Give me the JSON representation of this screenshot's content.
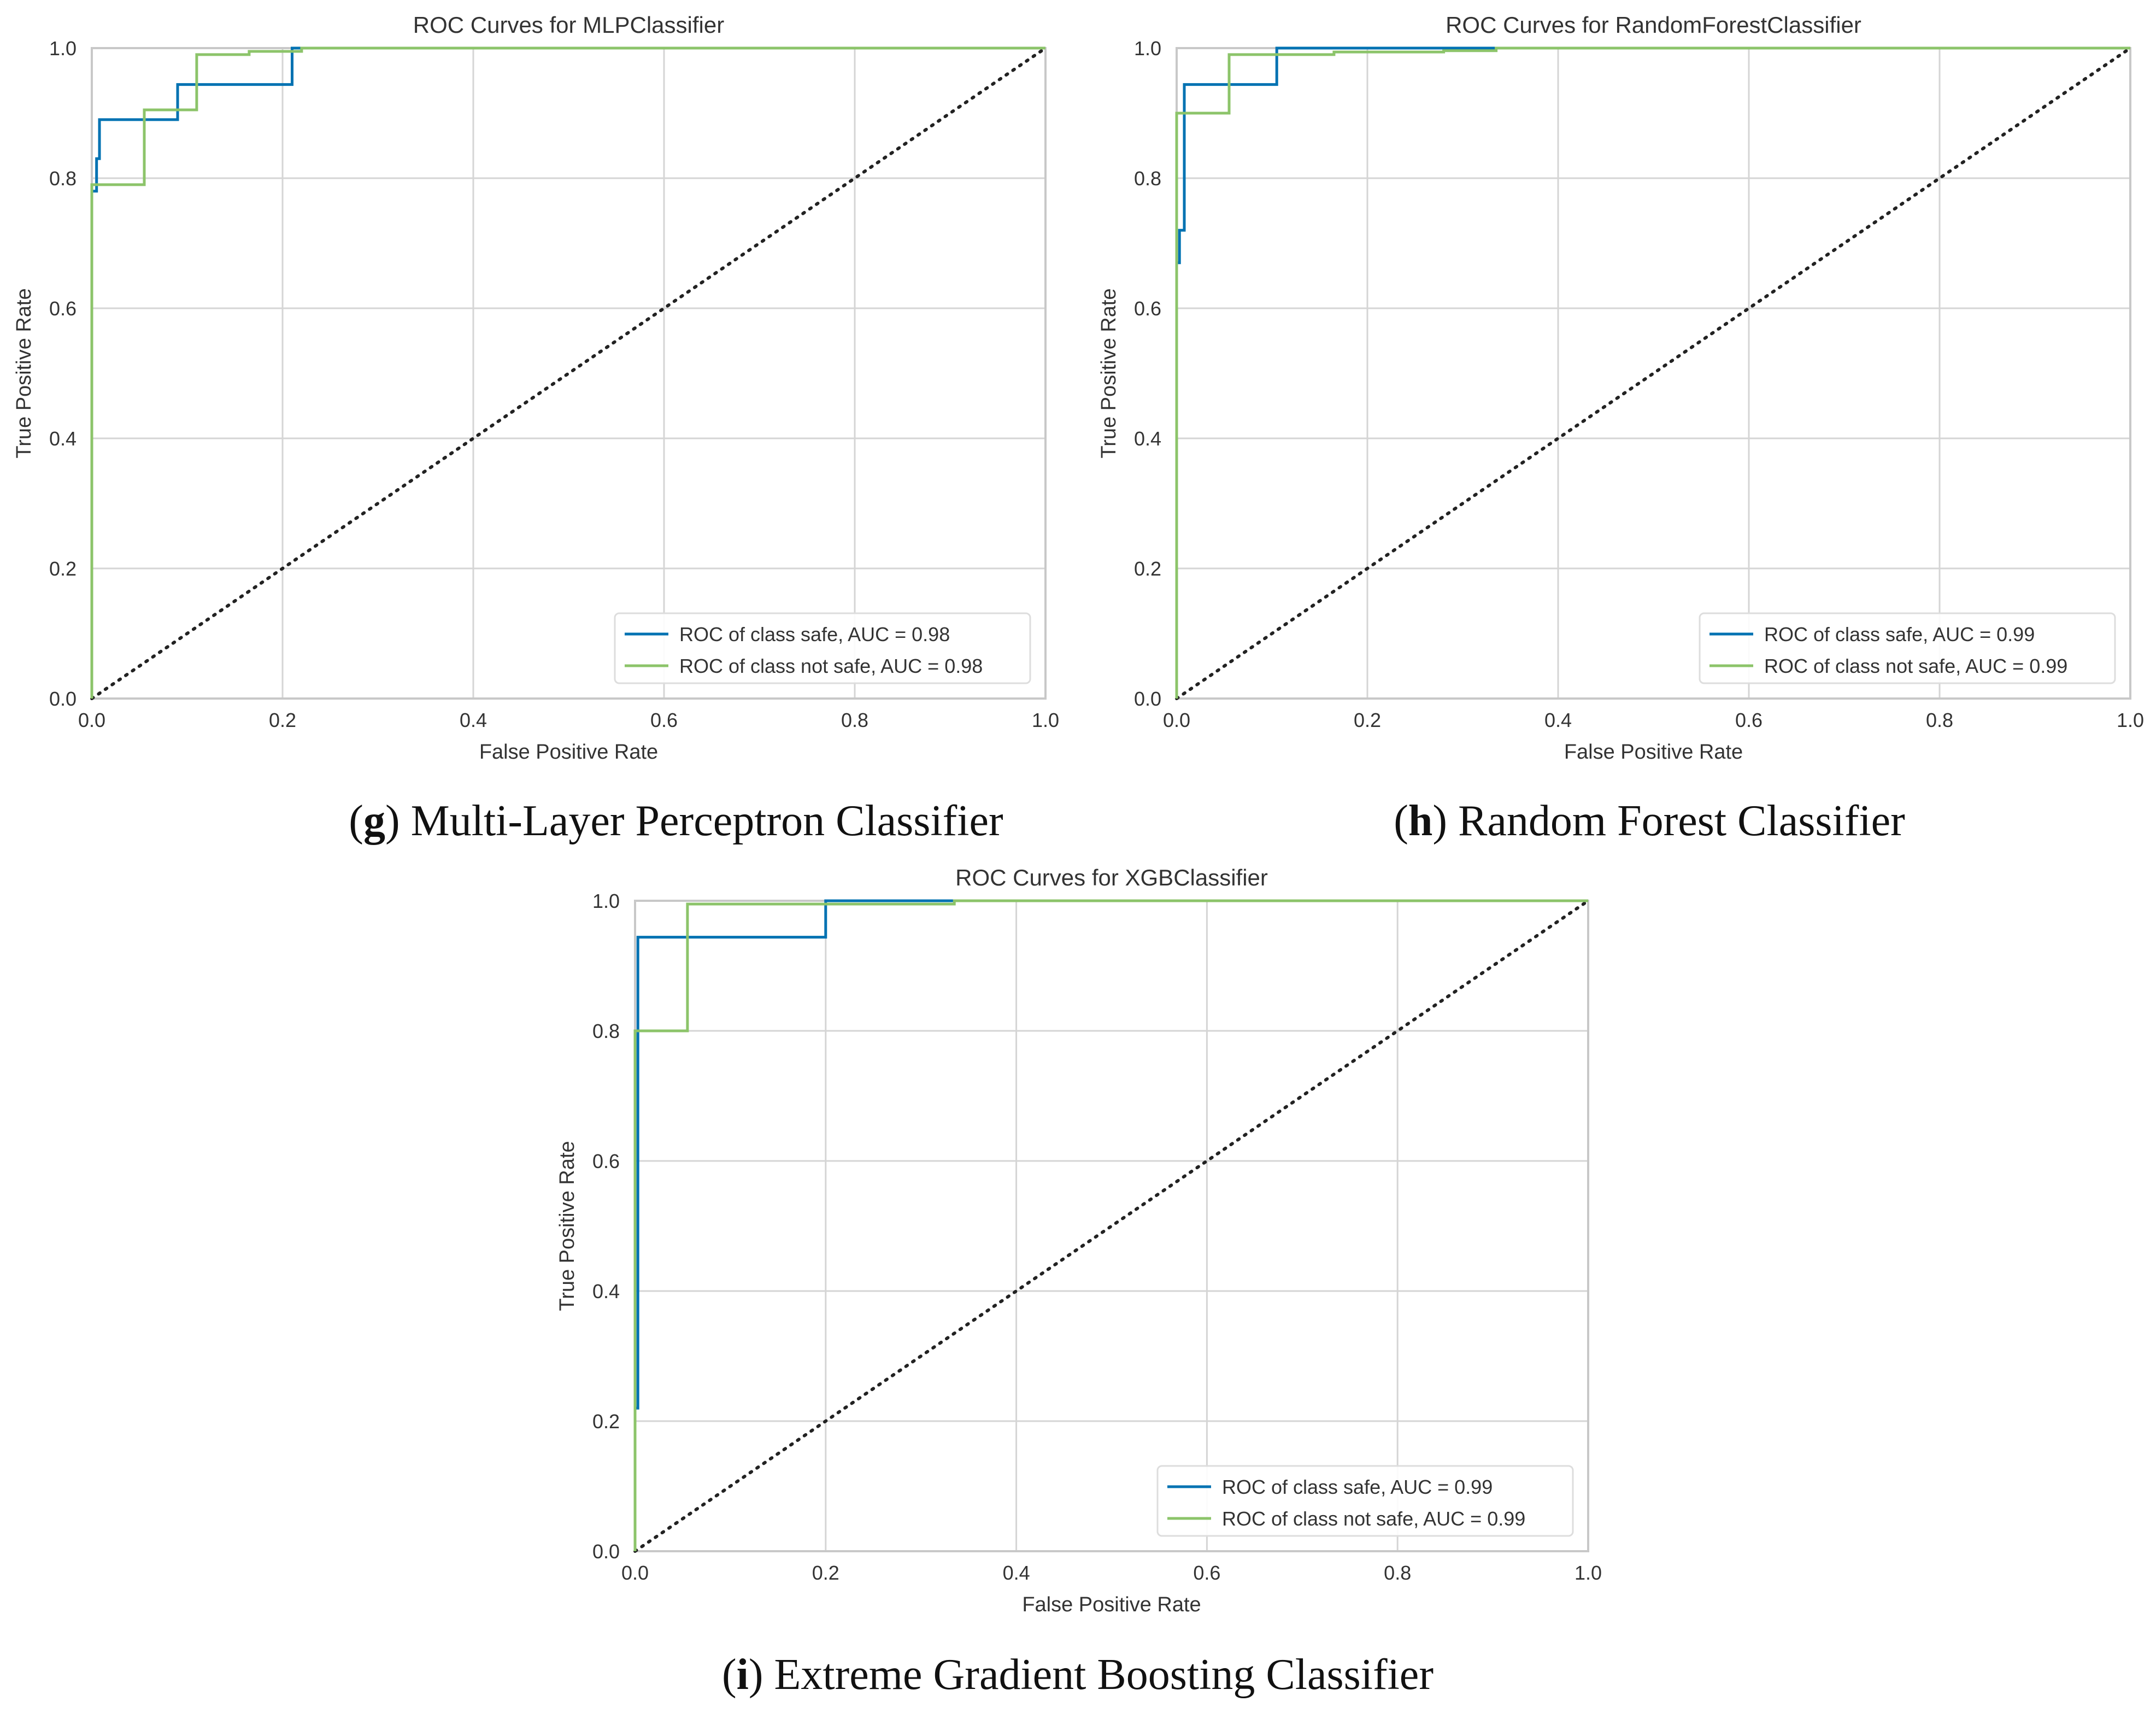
{
  "chart_data": [
    {
      "type": "line",
      "title": "ROC Curves for MLPClassifier",
      "xlabel": "False Positive Rate",
      "ylabel": "True Positive Rate",
      "xlim": [
        0,
        1
      ],
      "ylim": [
        0,
        1
      ],
      "xticks": [
        "0.0",
        "0.2",
        "0.4",
        "0.6",
        "0.8",
        "1.0"
      ],
      "yticks": [
        "0.0",
        "0.2",
        "0.4",
        "0.6",
        "0.8",
        "1.0"
      ],
      "grid": true,
      "legend_position": "lower-right",
      "colors": [
        "#0072B2",
        "#8CC46A"
      ],
      "series": [
        {
          "name": "ROC of class safe, AUC = 0.98",
          "x": [
            0,
            0,
            0.005,
            0.005,
            0.008,
            0.008,
            0.09,
            0.09,
            0.21,
            0.21,
            1
          ],
          "y": [
            0,
            0.78,
            0.78,
            0.83,
            0.83,
            0.89,
            0.89,
            0.944,
            0.944,
            1,
            1
          ]
        },
        {
          "name": "ROC of class not safe, AUC = 0.98",
          "x": [
            0,
            0,
            0.055,
            0.055,
            0.11,
            0.11,
            0.165,
            0.165,
            0.22,
            0.22,
            1
          ],
          "y": [
            0,
            0.79,
            0.79,
            0.905,
            0.905,
            0.99,
            0.99,
            0.995,
            0.995,
            1,
            1
          ]
        }
      ],
      "caption_letter": "g",
      "caption_text": "Multi-Layer Perceptron Classifier"
    },
    {
      "type": "line",
      "title": "ROC Curves for RandomForestClassifier",
      "xlabel": "False Positive Rate",
      "ylabel": "True Positive Rate",
      "xlim": [
        0,
        1
      ],
      "ylim": [
        0,
        1
      ],
      "xticks": [
        "0.0",
        "0.2",
        "0.4",
        "0.6",
        "0.8",
        "1.0"
      ],
      "yticks": [
        "0.0",
        "0.2",
        "0.4",
        "0.6",
        "0.8",
        "1.0"
      ],
      "grid": true,
      "legend_position": "lower-right",
      "colors": [
        "#0072B2",
        "#8CC46A"
      ],
      "series": [
        {
          "name": "ROC of class safe, AUC = 0.99",
          "x": [
            0,
            0,
            0.003,
            0.003,
            0.008,
            0.008,
            0.105,
            0.105,
            1
          ],
          "y": [
            0,
            0.67,
            0.67,
            0.72,
            0.72,
            0.944,
            0.944,
            1,
            1
          ]
        },
        {
          "name": "ROC of class not safe, AUC = 0.99",
          "x": [
            0,
            0,
            0.055,
            0.055,
            0.165,
            0.165,
            0.28,
            0.28,
            0.335,
            0.335,
            1
          ],
          "y": [
            0,
            0.9,
            0.9,
            0.99,
            0.99,
            0.994,
            0.994,
            0.996,
            0.996,
            1,
            1
          ]
        }
      ],
      "caption_letter": "h",
      "caption_text": "Random Forest Classifier"
    },
    {
      "type": "line",
      "title": "ROC Curves for XGBClassifier",
      "xlabel": "False Positive Rate",
      "ylabel": "True Positive Rate",
      "xlim": [
        0,
        1
      ],
      "ylim": [
        0,
        1
      ],
      "xticks": [
        "0.0",
        "0.2",
        "0.4",
        "0.6",
        "0.8",
        "1.0"
      ],
      "yticks": [
        "0.0",
        "0.2",
        "0.4",
        "0.6",
        "0.8",
        "1.0"
      ],
      "grid": true,
      "legend_position": "lower-right",
      "colors": [
        "#0072B2",
        "#8CC46A"
      ],
      "series": [
        {
          "name": "ROC of class safe, AUC = 0.99",
          "x": [
            0,
            0,
            0.003,
            0.003,
            0.2,
            0.2,
            1
          ],
          "y": [
            0,
            0.22,
            0.22,
            0.944,
            0.944,
            1,
            1
          ]
        },
        {
          "name": "ROC of class not safe, AUC = 0.99",
          "x": [
            0,
            0,
            0.055,
            0.055,
            0.335,
            0.335,
            0.78,
            0.78,
            1
          ],
          "y": [
            0,
            0.8,
            0.8,
            0.995,
            0.995,
            1,
            1,
            1,
            1
          ]
        }
      ],
      "caption_letter": "i",
      "caption_text": "Extreme Gradient Boosting Classifier"
    }
  ]
}
